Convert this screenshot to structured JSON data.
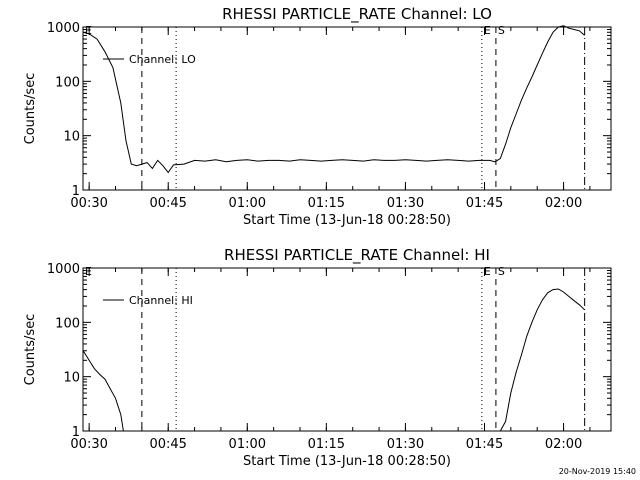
{
  "footer": {
    "timestamp": "20-Nov-2019 15:40"
  },
  "chart_data": [
    {
      "type": "line",
      "title": "RHESSI PARTICLE_RATE Channel: LO",
      "xlabel": "Start Time (13-Jun-18 00:28:50)",
      "ylabel": "Counts/sec",
      "yscale": "log",
      "xlim": [
        "00:28:50",
        "02:09:00"
      ],
      "ylim": [
        1,
        1000
      ],
      "xticks": [
        "00:30",
        "00:45",
        "01:00",
        "01:15",
        "01:30",
        "01:45",
        "02:00"
      ],
      "yticks": [
        "1",
        "10",
        "100",
        "1000"
      ],
      "legend": {
        "label": "Channel: LO",
        "position": "top-left"
      },
      "markers": [
        {
          "label": "E",
          "time": "00:28:50",
          "style": "dotted"
        },
        {
          "label": "",
          "time": "00:40:00",
          "style": "dashed"
        },
        {
          "label": "",
          "time": "00:46:30",
          "style": "dotted"
        },
        {
          "label": "E",
          "time": "01:44:30",
          "style": "dotted"
        },
        {
          "label": "S",
          "time": "01:47:10",
          "style": "dashed"
        },
        {
          "label": "",
          "time": "02:04:00",
          "style": "dashdot"
        }
      ],
      "series": [
        {
          "name": "Channel: LO",
          "x": [
            "00:28:50",
            "00:30:00",
            "00:31:30",
            "00:33:00",
            "00:34:30",
            "00:36:00",
            "00:37:00",
            "00:38:00",
            "00:39:00",
            "00:40:00",
            "00:41:00",
            "00:42:00",
            "00:43:00",
            "00:44:00",
            "00:45:00",
            "00:46:00",
            "00:48:00",
            "00:50:00",
            "00:52:00",
            "00:54:00",
            "00:56:00",
            "00:58:00",
            "01:00:00",
            "01:02:00",
            "01:04:00",
            "01:06:00",
            "01:08:00",
            "01:10:00",
            "01:12:00",
            "01:14:00",
            "01:16:00",
            "01:18:00",
            "01:20:00",
            "01:22:00",
            "01:24:00",
            "01:26:00",
            "01:28:00",
            "01:30:00",
            "01:32:00",
            "01:34:00",
            "01:36:00",
            "01:38:00",
            "01:40:00",
            "01:42:00",
            "01:44:00",
            "01:46:00",
            "01:47:00",
            "01:48:00",
            "01:49:00",
            "01:50:00",
            "01:51:00",
            "01:52:00",
            "01:53:00",
            "01:54:00",
            "01:55:00",
            "01:56:00",
            "01:57:00",
            "01:58:00",
            "01:59:00",
            "02:00:00",
            "02:01:00",
            "02:02:00",
            "02:03:00",
            "02:04:00"
          ],
          "y": [
            800,
            750,
            600,
            350,
            180,
            40,
            8,
            3,
            2.8,
            3,
            3.2,
            2.5,
            3.5,
            2.8,
            2.1,
            2.9,
            3,
            3.5,
            3.4,
            3.6,
            3.3,
            3.5,
            3.6,
            3.4,
            3.5,
            3.5,
            3.4,
            3.6,
            3.5,
            3.4,
            3.5,
            3.6,
            3.5,
            3.4,
            3.6,
            3.5,
            3.5,
            3.6,
            3.5,
            3.4,
            3.5,
            3.6,
            3.5,
            3.4,
            3.5,
            3.5,
            3.3,
            3.8,
            7,
            14,
            25,
            45,
            75,
            120,
            200,
            330,
            530,
            800,
            1000,
            1050,
            950,
            900,
            850,
            700
          ]
        }
      ]
    },
    {
      "type": "line",
      "title": "RHESSI PARTICLE_RATE Channel: HI",
      "xlabel": "Start Time (13-Jun-18 00:28:50)",
      "ylabel": "Counts/sec",
      "yscale": "log",
      "xlim": [
        "00:28:50",
        "02:09:00"
      ],
      "ylim": [
        1,
        1000
      ],
      "xticks": [
        "00:30",
        "00:45",
        "01:00",
        "01:15",
        "01:30",
        "01:45",
        "02:00"
      ],
      "yticks": [
        "1",
        "10",
        "100",
        "1000"
      ],
      "legend": {
        "label": "Channel: HI",
        "position": "top-left"
      },
      "markers": [
        {
          "label": "E",
          "time": "00:28:50",
          "style": "dotted"
        },
        {
          "label": "",
          "time": "00:40:00",
          "style": "dashed"
        },
        {
          "label": "",
          "time": "00:46:30",
          "style": "dotted"
        },
        {
          "label": "E",
          "time": "01:44:30",
          "style": "dotted"
        },
        {
          "label": "S",
          "time": "01:47:10",
          "style": "dashed"
        },
        {
          "label": "",
          "time": "02:04:00",
          "style": "dashdot"
        }
      ],
      "series": [
        {
          "name": "Channel: HI",
          "x": [
            "00:28:50",
            "00:29:30",
            "00:30:00",
            "00:31:00",
            "00:32:00",
            "00:33:00",
            "00:34:00",
            "00:35:00",
            "00:36:00",
            "00:36:30",
            "01:48:00",
            "01:49:00",
            "01:50:00",
            "01:51:00",
            "01:52:00",
            "01:53:00",
            "01:54:00",
            "01:55:00",
            "01:56:00",
            "01:57:00",
            "01:58:00",
            "01:59:00",
            "02:00:00",
            "02:01:00",
            "02:02:00",
            "02:03:00",
            "02:04:00"
          ],
          "y": [
            30,
            24,
            20,
            14,
            11,
            9,
            6,
            4,
            2,
            1,
            1,
            1.5,
            5,
            12,
            25,
            55,
            100,
            170,
            260,
            350,
            400,
            410,
            360,
            300,
            250,
            210,
            170
          ]
        }
      ]
    }
  ]
}
